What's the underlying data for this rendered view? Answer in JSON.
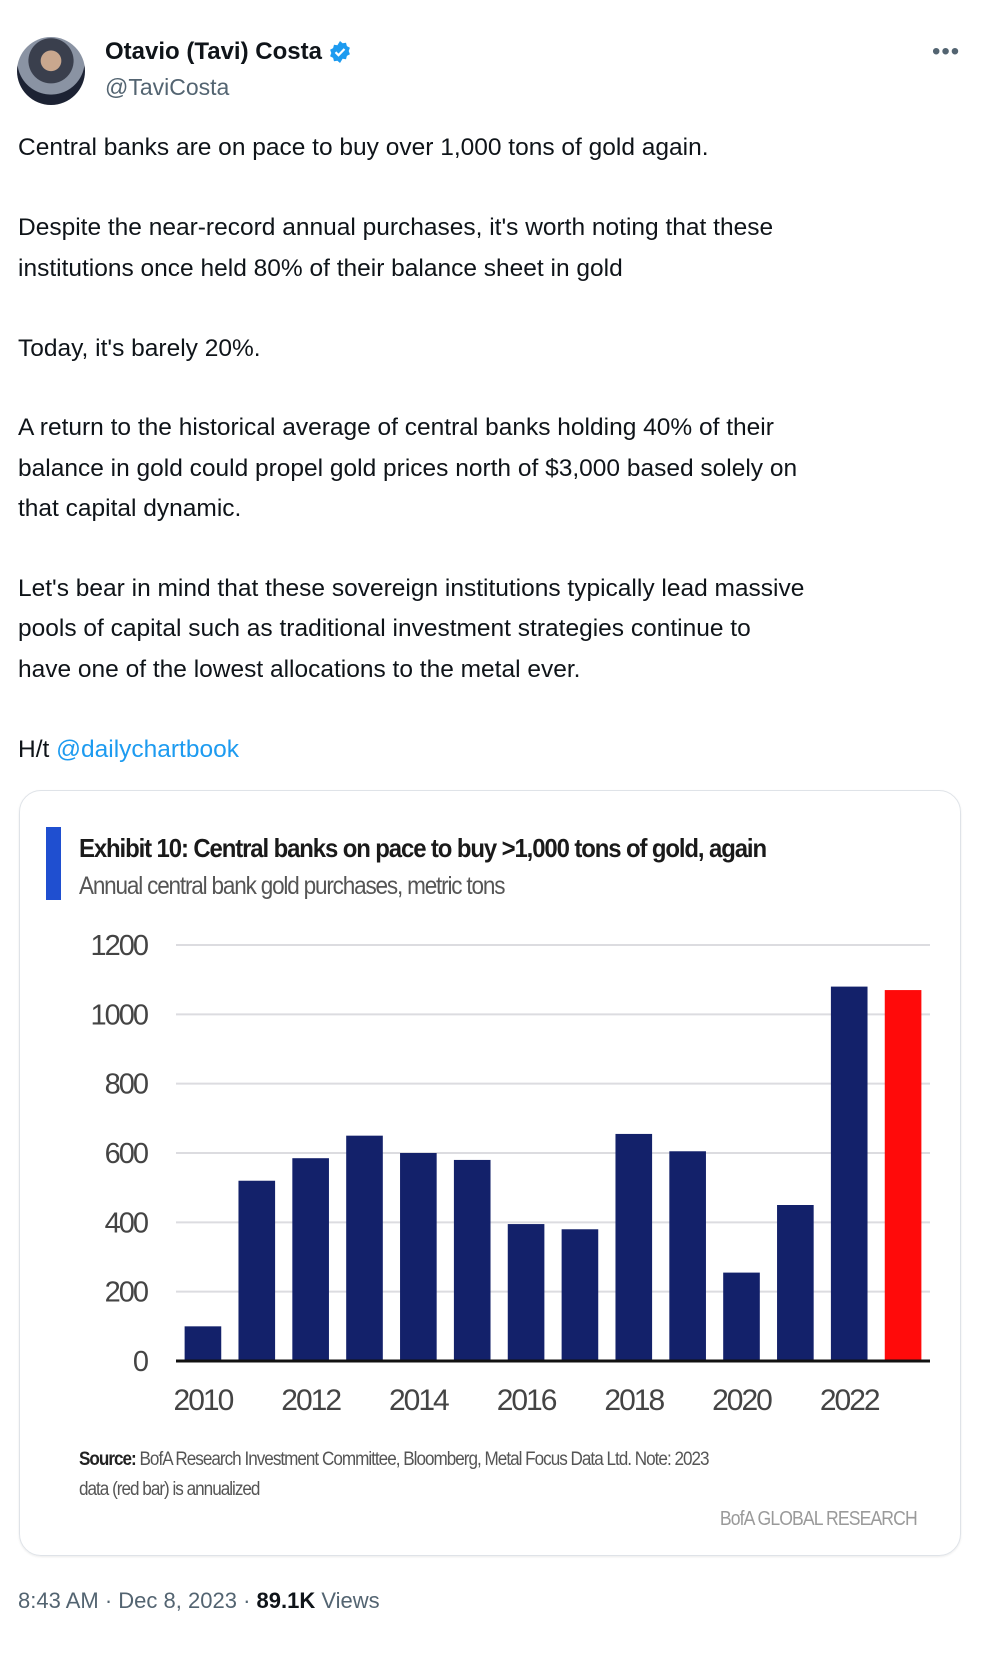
{
  "tweet": {
    "author_name": "Otavio (Tavi) Costa",
    "handle": "@TaviCosta",
    "verified": true,
    "more_icon": "ellipsis-icon",
    "lines": [
      "Central banks are on pace to buy over 1,000 tons of gold again.",
      "Despite the near-record annual purchases, it's worth noting that these",
      "institutions once held 80% of their balance sheet in gold",
      "Today, it's barely 20%.",
      "A return to the historical average of central banks holding 40% of their",
      "balance in gold could propel gold prices north of $3,000 based solely on",
      "that capital dynamic.",
      "Let's bear in mind that these sovereign institutions typically lead massive",
      "pools of capital such as traditional investment strategies continue to",
      "have one of the lowest allocations to the metal ever."
    ],
    "ht_prefix": "H/t ",
    "ht_mention": "@dailychartbook",
    "time": "8:43 AM",
    "date": "Dec 8, 2023",
    "views_count": "89.1K",
    "views_label": "Views",
    "separator": "·"
  },
  "chart_data": {
    "type": "bar",
    "title": "Exhibit 10: Central banks on pace to buy >1,000 tons of gold, again",
    "subtitle": "Annual central bank gold purchases, metric tons",
    "categories": [
      "2010",
      "2011",
      "2012",
      "2013",
      "2014",
      "2015",
      "2016",
      "2017",
      "2018",
      "2019",
      "2020",
      "2021",
      "2022",
      "2023"
    ],
    "values": [
      100,
      520,
      585,
      650,
      600,
      580,
      395,
      380,
      655,
      605,
      255,
      450,
      1080,
      1070
    ],
    "x_tick_labels": [
      "2010",
      "2012",
      "2014",
      "2016",
      "2018",
      "2020",
      "2022"
    ],
    "y_ticks": [
      0,
      200,
      400,
      600,
      800,
      1000,
      1200
    ],
    "ylim": [
      0,
      1200
    ],
    "grid": true,
    "colors": {
      "bar": "#13216a",
      "highlight": "#ff0a0a",
      "accent": "#1f4fd0"
    },
    "highlight_category": "2023",
    "source_label": "Source:",
    "source_text": " BofA Research Investment Committee, Bloomberg, Metal Focus Data Ltd. Note: 2023",
    "source_text_2": "data (red bar) is annualized",
    "brand": "BofA GLOBAL RESEARCH"
  }
}
